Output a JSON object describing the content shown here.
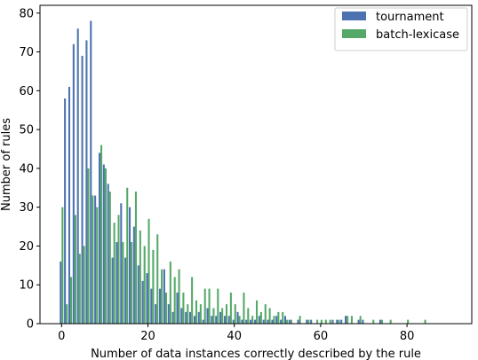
{
  "chart_data": {
    "type": "bar",
    "xlabel": "Number of data instances correctly described by the rule",
    "ylabel": "Number of rules",
    "xlim": [
      -5,
      95
    ],
    "ylim": [
      0,
      82
    ],
    "xticks": [
      0,
      20,
      40,
      60,
      80
    ],
    "yticks": [
      0,
      10,
      20,
      30,
      40,
      50,
      60,
      70,
      80
    ],
    "grid": false,
    "legend_position": "top-right",
    "series": [
      {
        "name": "tournament",
        "color": "#4c72b0",
        "points": [
          [
            0,
            16
          ],
          [
            1,
            58
          ],
          [
            2,
            61
          ],
          [
            3,
            72
          ],
          [
            4,
            76
          ],
          [
            5,
            69
          ],
          [
            6,
            73
          ],
          [
            7,
            78
          ],
          [
            8,
            33
          ],
          [
            9,
            44
          ],
          [
            10,
            41
          ],
          [
            11,
            36
          ],
          [
            12,
            17
          ],
          [
            13,
            21
          ],
          [
            14,
            31
          ],
          [
            15,
            17
          ],
          [
            16,
            30
          ],
          [
            17,
            25
          ],
          [
            18,
            15
          ],
          [
            19,
            11
          ],
          [
            20,
            13
          ],
          [
            21,
            9
          ],
          [
            22,
            5
          ],
          [
            23,
            9
          ],
          [
            24,
            14
          ],
          [
            25,
            5
          ],
          [
            26,
            3
          ],
          [
            27,
            8
          ],
          [
            28,
            4
          ],
          [
            29,
            3
          ],
          [
            30,
            3
          ],
          [
            31,
            2
          ],
          [
            32,
            3
          ],
          [
            33,
            1
          ],
          [
            34,
            4
          ],
          [
            35,
            2
          ],
          [
            36,
            2
          ],
          [
            37,
            3
          ],
          [
            38,
            2
          ],
          [
            39,
            2
          ],
          [
            40,
            1
          ],
          [
            41,
            3
          ],
          [
            42,
            1
          ],
          [
            43,
            1
          ],
          [
            44,
            1
          ],
          [
            45,
            1
          ],
          [
            46,
            2
          ],
          [
            47,
            1
          ],
          [
            48,
            1
          ],
          [
            49,
            1
          ],
          [
            50,
            2
          ],
          [
            51,
            1
          ],
          [
            52,
            2
          ],
          [
            53,
            1
          ],
          [
            55,
            1
          ],
          [
            57,
            1
          ],
          [
            58,
            1
          ],
          [
            63,
            1
          ],
          [
            64,
            1
          ],
          [
            65,
            1
          ],
          [
            66,
            2
          ],
          [
            69,
            1
          ],
          [
            70,
            1
          ],
          [
            74,
            1
          ]
        ]
      },
      {
        "name": "batch-lexicase",
        "color": "#55a868",
        "points": [
          [
            0,
            30
          ],
          [
            1,
            5
          ],
          [
            2,
            12
          ],
          [
            3,
            28
          ],
          [
            4,
            18
          ],
          [
            5,
            20
          ],
          [
            6,
            40
          ],
          [
            7,
            33
          ],
          [
            8,
            30
          ],
          [
            9,
            46
          ],
          [
            10,
            40
          ],
          [
            11,
            34
          ],
          [
            12,
            26
          ],
          [
            13,
            28
          ],
          [
            14,
            21
          ],
          [
            15,
            35
          ],
          [
            16,
            21
          ],
          [
            17,
            34
          ],
          [
            18,
            24
          ],
          [
            19,
            20
          ],
          [
            20,
            27
          ],
          [
            21,
            19
          ],
          [
            22,
            23
          ],
          [
            23,
            14
          ],
          [
            24,
            8
          ],
          [
            25,
            16
          ],
          [
            26,
            12
          ],
          [
            27,
            14
          ],
          [
            28,
            8
          ],
          [
            29,
            5
          ],
          [
            30,
            12
          ],
          [
            31,
            6
          ],
          [
            32,
            5
          ],
          [
            33,
            9
          ],
          [
            34,
            9
          ],
          [
            35,
            4
          ],
          [
            36,
            9
          ],
          [
            37,
            4
          ],
          [
            38,
            5
          ],
          [
            39,
            8
          ],
          [
            40,
            5
          ],
          [
            41,
            2
          ],
          [
            42,
            8
          ],
          [
            43,
            4
          ],
          [
            44,
            2
          ],
          [
            45,
            6
          ],
          [
            46,
            3
          ],
          [
            47,
            5
          ],
          [
            48,
            4
          ],
          [
            49,
            2
          ],
          [
            50,
            3
          ],
          [
            51,
            3
          ],
          [
            52,
            1
          ],
          [
            53,
            1
          ],
          [
            55,
            2
          ],
          [
            57,
            1
          ],
          [
            59,
            1
          ],
          [
            60,
            1
          ],
          [
            61,
            1
          ],
          [
            62,
            1
          ],
          [
            64,
            1
          ],
          [
            66,
            2
          ],
          [
            67,
            2
          ],
          [
            69,
            2
          ],
          [
            72,
            1
          ],
          [
            74,
            1
          ],
          [
            76,
            1
          ],
          [
            80,
            1
          ],
          [
            84,
            1
          ]
        ]
      }
    ]
  }
}
